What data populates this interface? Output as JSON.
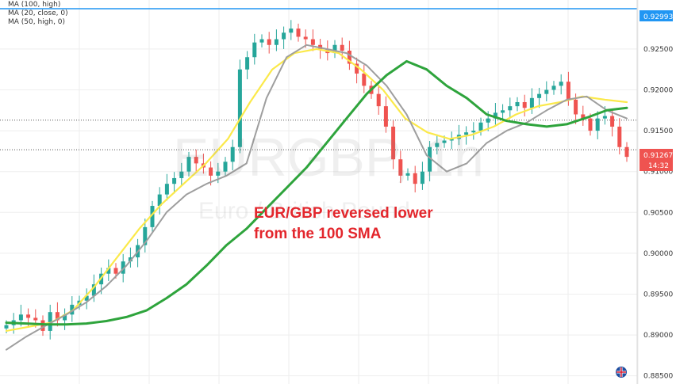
{
  "legend": [
    {
      "label": "MA (100, high)"
    },
    {
      "label": "MA (20, close, 0)"
    },
    {
      "label": "MA (50, high, 0)"
    }
  ],
  "watermark": {
    "symbol": "EURGBP, 1h",
    "description": "Euro / British Pound"
  },
  "annotation": {
    "line1": "EUR/GBP reversed lower",
    "line2": "from the 100 SMA"
  },
  "price_labels": {
    "resistance": "0.92993",
    "current": "0.91267",
    "countdown": "14:32"
  },
  "colors": {
    "up_candle": "#26a69a",
    "down_candle": "#ef5350",
    "ma100": "#2ea43c",
    "ma20": "#9e9e9e",
    "ma50": "#fbe94a",
    "resistance_line": "#2196f3",
    "annotation": "#e3262c",
    "grid": "#eeeeee"
  },
  "chart_data": {
    "type": "line",
    "ylim": [
      0.884,
      0.931
    ],
    "y_ticks": [
      "0.92500",
      "0.92000",
      "0.91500",
      "0.91000",
      "0.90500",
      "0.90000",
      "0.89500",
      "0.89000",
      "0.88500"
    ],
    "horizontal_levels": [
      {
        "value": 0.92993,
        "style": "solid"
      },
      {
        "value": 0.9163,
        "style": "dotted"
      },
      {
        "value": 0.91267,
        "style": "dotted"
      }
    ],
    "candles": [
      0.8912,
      0.8918,
      0.8925,
      0.8921,
      0.8918,
      0.8905,
      0.8928,
      0.8918,
      0.8925,
      0.8937,
      0.8942,
      0.8948,
      0.8962,
      0.8975,
      0.8982,
      0.8975,
      0.899,
      0.8995,
      0.901,
      0.9032,
      0.9058,
      0.9072,
      0.9085,
      0.9092,
      0.91,
      0.9118,
      0.911,
      0.9105,
      0.9095,
      0.91,
      0.9112,
      0.913,
      0.9225,
      0.924,
      0.9258,
      0.9262,
      0.9255,
      0.9262,
      0.927,
      0.9275,
      0.9265,
      0.9262,
      0.9255,
      0.925,
      0.9245,
      0.9255,
      0.9248,
      0.9232,
      0.922,
      0.9205,
      0.9195,
      0.918,
      0.9155,
      0.9115,
      0.9095,
      0.9098,
      0.9085,
      0.91,
      0.913,
      0.9135,
      0.9138,
      0.914,
      0.9145,
      0.9148,
      0.915,
      0.916,
      0.9165,
      0.9172,
      0.9175,
      0.918,
      0.9185,
      0.9178,
      0.919,
      0.9195,
      0.92,
      0.9205,
      0.921,
      0.9188,
      0.917,
      0.9165,
      0.915,
      0.9165,
      0.9168,
      0.9155,
      0.913,
      0.9118
    ],
    "series": [
      {
        "name": "MA (100, high)",
        "values": [
          0.8915,
          0.8914,
          0.8913,
          0.8913,
          0.8914,
          0.8917,
          0.8922,
          0.893,
          0.8945,
          0.8962,
          0.8985,
          0.901,
          0.903,
          0.9055,
          0.908,
          0.9105,
          0.9135,
          0.9165,
          0.9195,
          0.9218,
          0.9235,
          0.9225,
          0.9205,
          0.919,
          0.917,
          0.9162,
          0.9158,
          0.9155,
          0.9158,
          0.9166,
          0.9175,
          0.9178
        ]
      },
      {
        "name": "MA (20, close, 0)",
        "values": [
          0.8882,
          0.8898,
          0.8912,
          0.8925,
          0.894,
          0.896,
          0.8985,
          0.9015,
          0.905,
          0.9072,
          0.9085,
          0.9095,
          0.911,
          0.919,
          0.924,
          0.9255,
          0.925,
          0.9245,
          0.923,
          0.9205,
          0.917,
          0.912,
          0.91,
          0.911,
          0.9135,
          0.915,
          0.916,
          0.9175,
          0.9188,
          0.9192,
          0.9175,
          0.9165
        ]
      },
      {
        "name": "MA (50, high, 0)",
        "values": [
          0.8905,
          0.891,
          0.8915,
          0.893,
          0.896,
          0.8995,
          0.903,
          0.906,
          0.9085,
          0.911,
          0.914,
          0.9185,
          0.9225,
          0.9245,
          0.925,
          0.9245,
          0.9225,
          0.92,
          0.9165,
          0.9148,
          0.914,
          0.9145,
          0.9155,
          0.917,
          0.918,
          0.9185,
          0.9192,
          0.9188,
          0.9185
        ]
      }
    ]
  }
}
